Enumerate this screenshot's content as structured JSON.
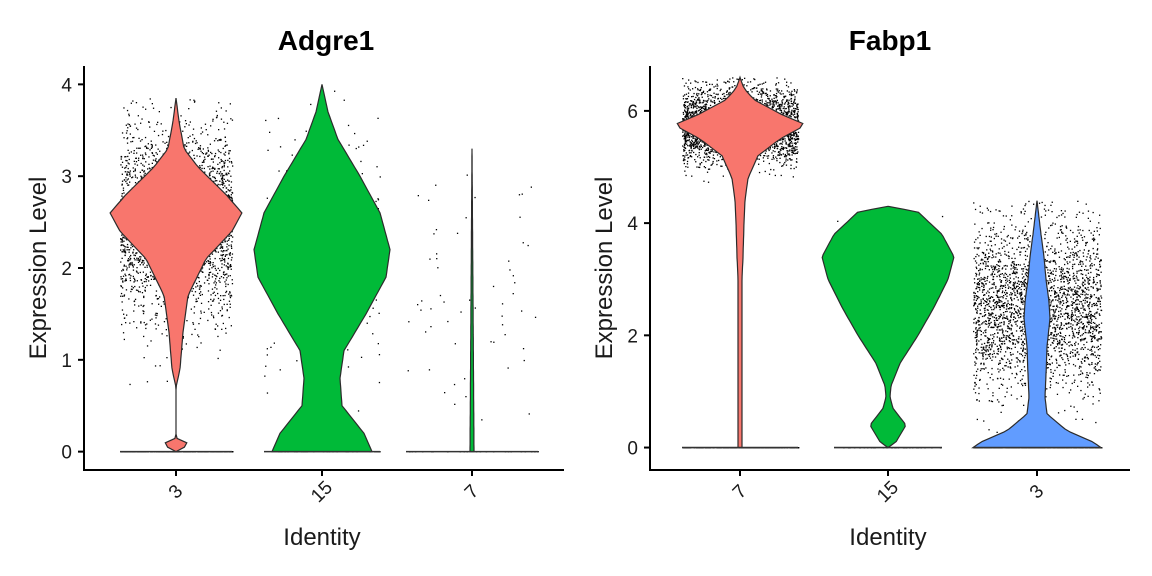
{
  "chart_data": [
    {
      "type": "violin",
      "title": "Adgre1",
      "xlabel": "Identity",
      "ylabel": "Expression Level",
      "categories": [
        "3",
        "15",
        "7"
      ],
      "ylim": [
        -0.2,
        4.2
      ],
      "yticks": [
        0,
        1,
        2,
        3,
        4
      ],
      "colors": [
        "#F8766D",
        "#00BA38",
        "#00BA38"
      ],
      "series": [
        {
          "group": "3",
          "mode": 2.5,
          "max": 3.85,
          "secondary_mode": 0.0,
          "approx_cells": 2600,
          "zeros": true
        },
        {
          "group": "15",
          "mode": 2.2,
          "max": 4.0,
          "secondary_mode": 0.25,
          "approx_cells": 200,
          "zeros": true
        },
        {
          "group": "7",
          "mode": 0.0,
          "max": 3.3,
          "approx_cells": 60,
          "zeros": true
        }
      ]
    },
    {
      "type": "violin",
      "title": "Fabp1",
      "xlabel": "Identity",
      "ylabel": "Expression Level",
      "categories": [
        "7",
        "15",
        "3"
      ],
      "ylim": [
        -0.4,
        6.8
      ],
      "yticks": [
        0,
        2,
        4,
        6
      ],
      "colors": [
        "#F8766D",
        "#00BA38",
        "#619CFF"
      ],
      "series": [
        {
          "group": "7",
          "mode": 5.75,
          "max": 6.6,
          "approx_cells": 3000,
          "zeros": true
        },
        {
          "group": "15",
          "mode": 3.4,
          "max": 4.3,
          "secondary_mode": 0.3,
          "approx_cells": 200,
          "zeros": true
        },
        {
          "group": "3",
          "mode": 2.5,
          "max": 4.4,
          "secondary_mode": 0.05,
          "approx_cells": 2600,
          "zeros": true
        }
      ]
    }
  ]
}
